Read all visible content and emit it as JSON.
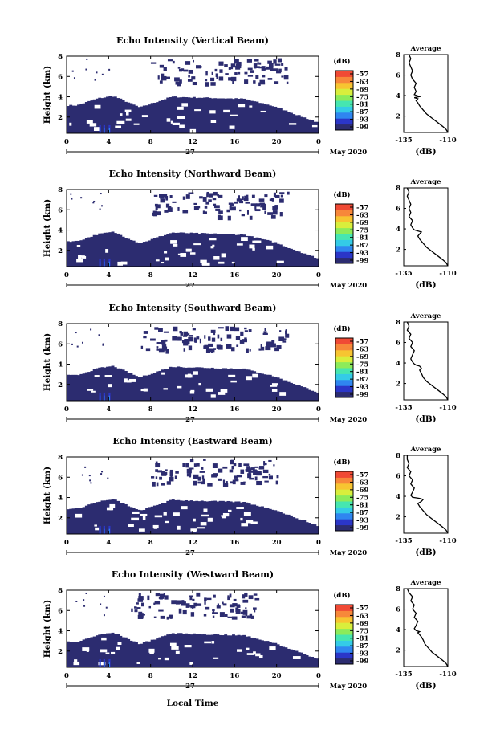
{
  "chart_data": {
    "type": "heatmap",
    "date_label": "May 2020",
    "day_label": "27",
    "xlabel": "Local Time",
    "ylabel": "Height (km)",
    "xlim": [
      0,
      24
    ],
    "xticks": [
      "0",
      "4",
      "8",
      "12",
      "16",
      "20",
      "0"
    ],
    "ylim": [
      0.4,
      8
    ],
    "yticks": [
      "2",
      "4",
      "6",
      "8"
    ],
    "colorbar": {
      "label": "(dB)",
      "ticks": [
        "-57",
        "-63",
        "-69",
        "-75",
        "-81",
        "-87",
        "-93",
        "-99"
      ],
      "colors": [
        "#2c2c70",
        "#2b36c8",
        "#2f86f0",
        "#34cbe7",
        "#46e6b0",
        "#8ceb5a",
        "#d9ee3c",
        "#f7c531",
        "#f7883a",
        "#f04a35"
      ]
    },
    "profile": {
      "title": "Average",
      "xlabel": "(dB)",
      "xticks": [
        "-135",
        "-110"
      ],
      "yticks": [
        "2",
        "4",
        "6",
        "8"
      ]
    },
    "panels": [
      {
        "title": "Echo Intensity (Vertical Beam)",
        "profile_xlim": [
          -135,
          -110
        ],
        "profile_x": [
          -110,
          -111,
          -113,
          -116,
          -119,
          -122,
          -124,
          -126,
          -127,
          -128,
          -127,
          -129,
          -126,
          -129,
          -128,
          -129,
          -128,
          -130,
          -131,
          -130,
          -131,
          -132,
          -131,
          -132
        ],
        "profile_y": [
          0.4,
          0.7,
          1.0,
          1.4,
          1.8,
          2.2,
          2.6,
          3.0,
          3.3,
          3.5,
          3.7,
          3.8,
          3.9,
          4.1,
          4.4,
          4.8,
          5.2,
          5.6,
          6.0,
          6.4,
          6.8,
          7.2,
          7.6,
          8.0
        ]
      },
      {
        "title": "Echo Intensity (Northward Beam)",
        "profile_xlim": [
          -135,
          -110
        ],
        "profile_x": [
          -110,
          -111,
          -113,
          -116,
          -119,
          -122,
          -124,
          -126,
          -127,
          -126,
          -125,
          -127,
          -129,
          -130,
          -131,
          -130,
          -132,
          -131,
          -132,
          -131,
          -132,
          -133,
          -132,
          -133
        ],
        "profile_y": [
          0.4,
          0.7,
          1.0,
          1.4,
          1.8,
          2.2,
          2.6,
          3.0,
          3.3,
          3.5,
          3.7,
          3.8,
          3.9,
          4.1,
          4.4,
          4.8,
          5.2,
          5.6,
          6.0,
          6.4,
          6.8,
          7.2,
          7.6,
          8.0
        ]
      },
      {
        "title": "Echo Intensity (Southward Beam)",
        "profile_xlim": [
          -135,
          -110
        ],
        "profile_x": [
          -110,
          -111,
          -113,
          -116,
          -119,
          -122,
          -124,
          -125,
          -126,
          -125,
          -126,
          -128,
          -129,
          -130,
          -131,
          -130,
          -129,
          -131,
          -130,
          -132,
          -131,
          -133,
          -132,
          -133
        ],
        "profile_y": [
          0.4,
          0.7,
          1.0,
          1.4,
          1.8,
          2.2,
          2.6,
          3.0,
          3.3,
          3.5,
          3.7,
          3.8,
          3.9,
          4.1,
          4.4,
          4.8,
          5.2,
          5.6,
          6.0,
          6.4,
          6.8,
          7.2,
          7.6,
          8.0
        ]
      },
      {
        "title": "Echo Intensity (Eastward Beam)",
        "profile_xlim": [
          -135,
          -110
        ],
        "profile_x": [
          -110,
          -111,
          -113,
          -116,
          -119,
          -122,
          -124,
          -126,
          -127,
          -125,
          -124,
          -126,
          -130,
          -131,
          -130,
          -129,
          -131,
          -130,
          -132,
          -131,
          -133,
          -132,
          -133,
          -133
        ],
        "profile_y": [
          0.4,
          0.7,
          1.0,
          1.4,
          1.8,
          2.2,
          2.6,
          3.0,
          3.3,
          3.5,
          3.7,
          3.8,
          3.9,
          4.1,
          4.4,
          4.8,
          5.2,
          5.6,
          6.0,
          6.4,
          6.8,
          7.2,
          7.6,
          8.0
        ]
      },
      {
        "title": "Echo Intensity (Westward Beam)",
        "profile_xlim": [
          -135,
          -110
        ],
        "profile_x": [
          -110,
          -111,
          -113,
          -116,
          -119,
          -121,
          -123,
          -124,
          -125,
          -126,
          -127,
          -126,
          -128,
          -129,
          -128,
          -127,
          -129,
          -128,
          -130,
          -129,
          -131,
          -130,
          -132,
          -133
        ],
        "profile_y": [
          0.4,
          0.7,
          1.0,
          1.4,
          1.8,
          2.2,
          2.6,
          3.0,
          3.3,
          3.5,
          3.7,
          3.8,
          3.9,
          4.1,
          4.4,
          4.8,
          5.2,
          5.6,
          6.0,
          6.4,
          6.8,
          7.2,
          7.6,
          8.0
        ]
      }
    ]
  }
}
